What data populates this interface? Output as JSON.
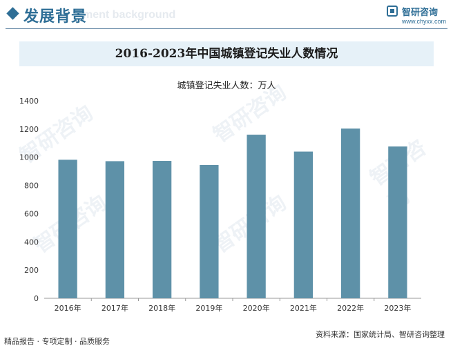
{
  "header": {
    "title": "发展背景",
    "subtitle_en": "ment background",
    "brand_name": "智研咨询",
    "brand_url": "www.chyxx.com"
  },
  "footer": {
    "left_text": "精品报告 · 专项定制 · 品质服务",
    "source_text": "资料来源：国家统计局、智研咨询整理"
  },
  "watermark_text": "智研咨询",
  "chart_data": {
    "type": "bar",
    "title": "2016-2023年中国城镇登记失业人数情况",
    "series_label": "城镇登记失业人数：万人",
    "categories": [
      "2016年",
      "2017年",
      "2018年",
      "2019年",
      "2020年",
      "2021年",
      "2022年",
      "2023年"
    ],
    "values": [
      982,
      972,
      974,
      945,
      1160,
      1040,
      1203,
      1076
    ],
    "ylim": [
      0,
      1400
    ],
    "yticks": [
      0,
      200,
      400,
      600,
      800,
      1000,
      1200,
      1400
    ],
    "bar_color": "#5e91a8",
    "grid": false
  }
}
